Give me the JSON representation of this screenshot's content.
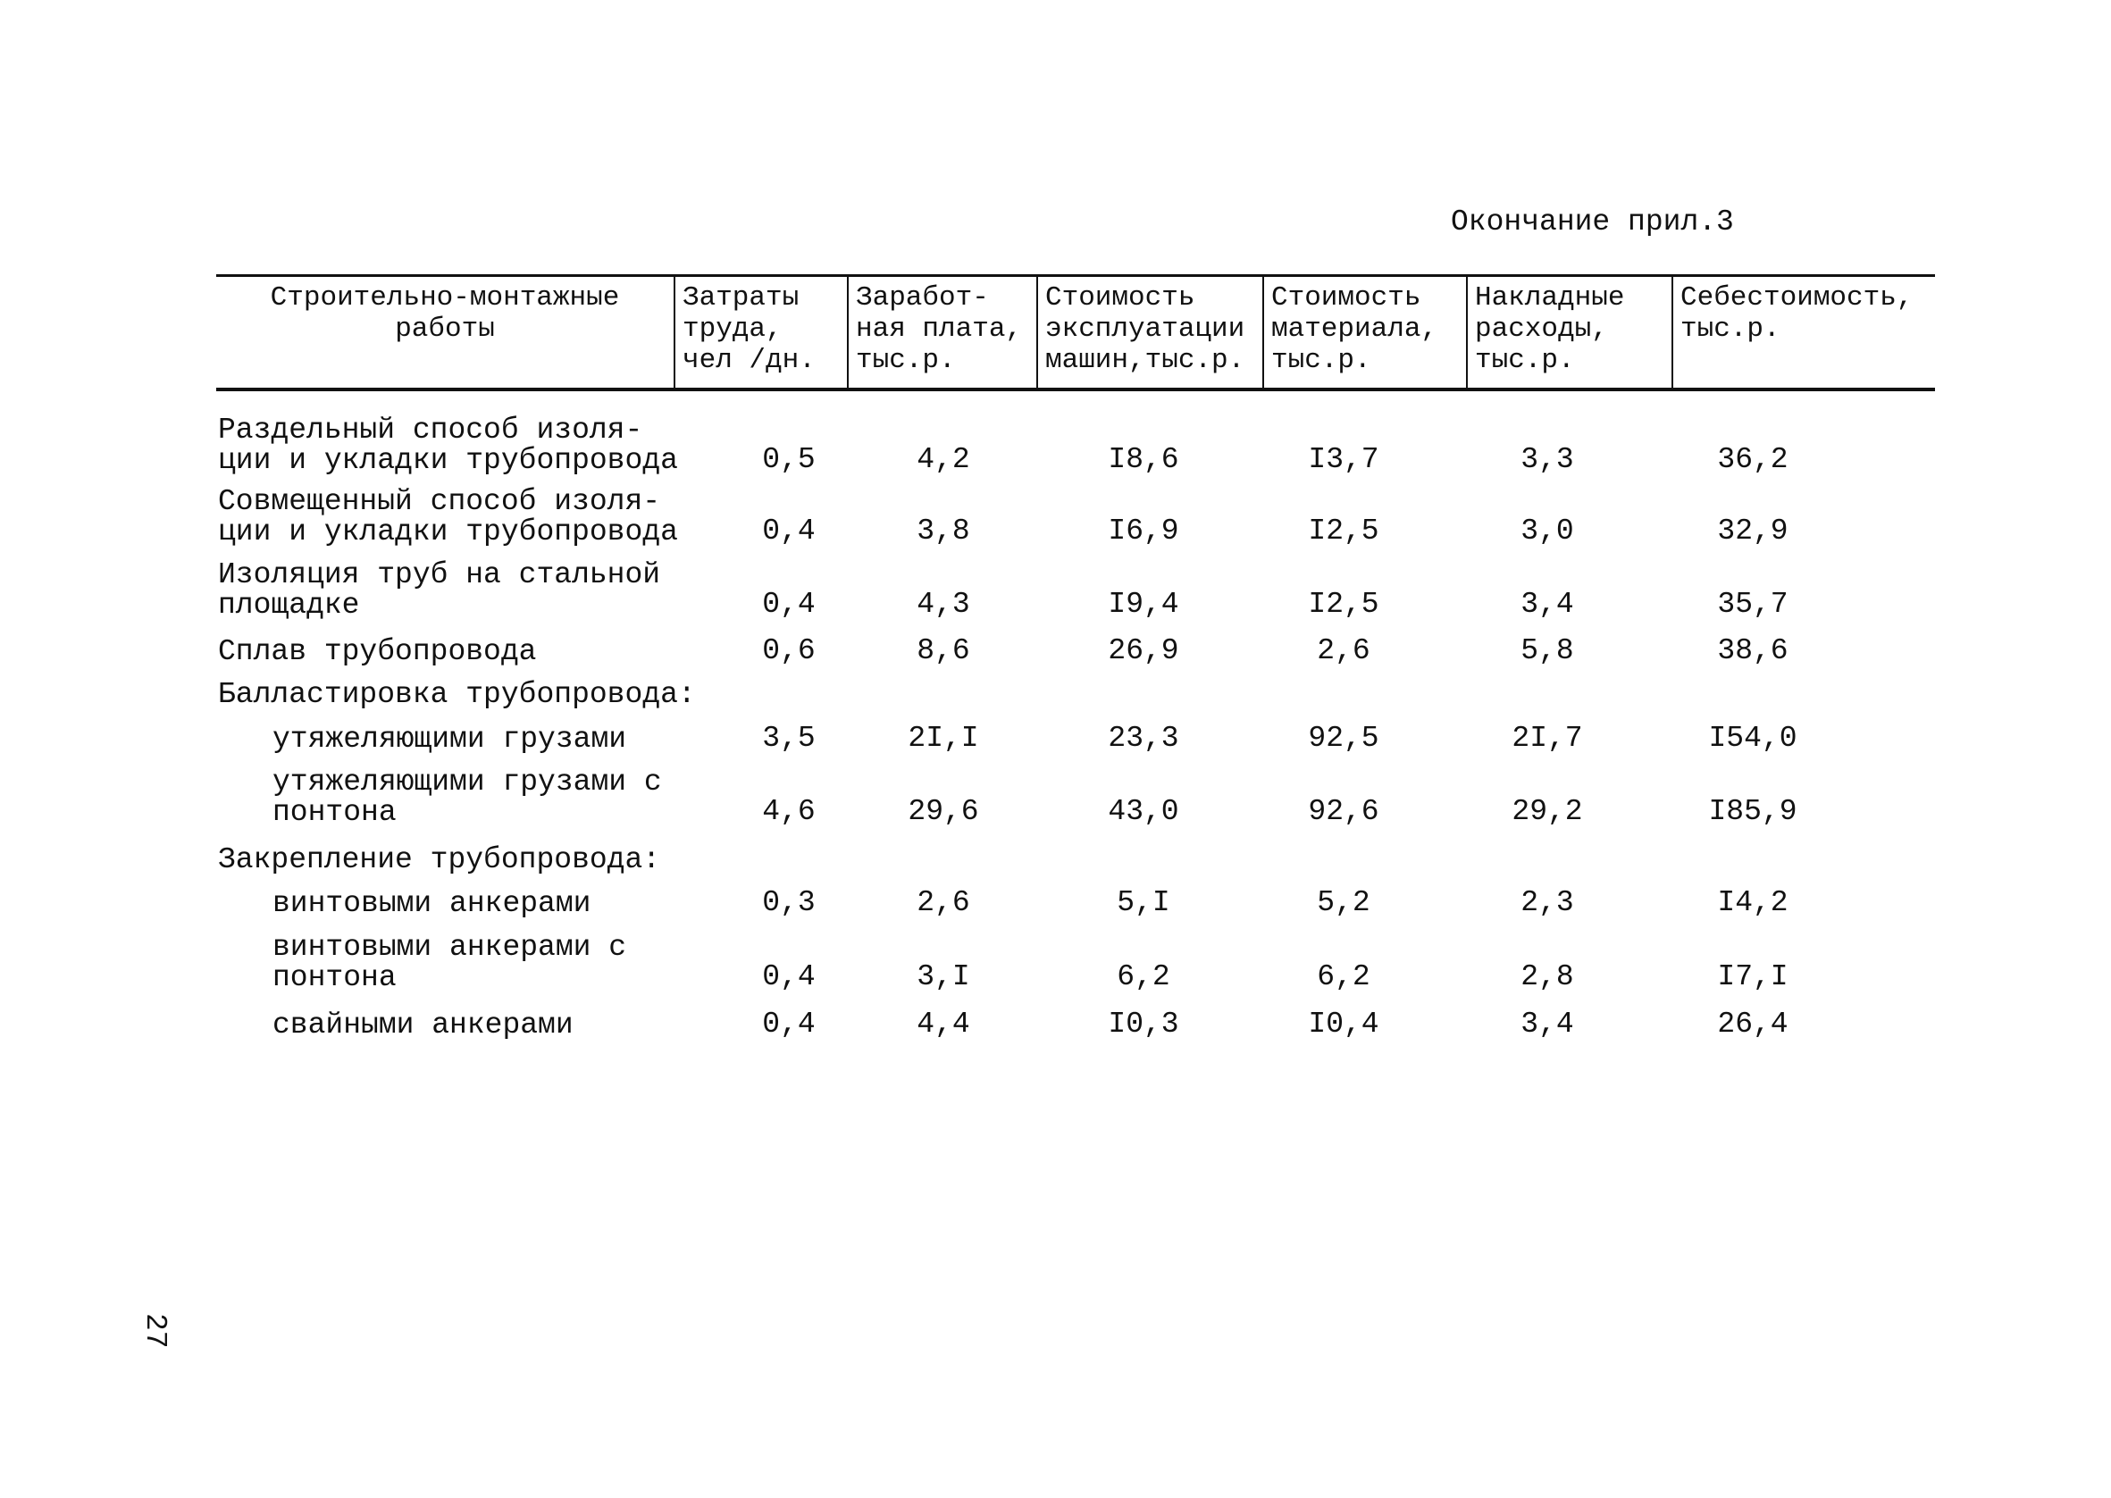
{
  "header": {
    "caption": "Окончание прил.3"
  },
  "table": {
    "columns": [
      "Строительно-монтажные\nработы",
      "Затраты\nтруда,\nчел /дн.",
      "Заработ-\nная плата,\nтыс.р.",
      "Стоимость\nэксплуатации\nмашин,тыс.р.",
      "Стоимость\nматериала,\nтыс.р.",
      "Накладные\nрасходы,\nтыс.р.",
      "Себестоимость,\nтыс.р."
    ],
    "rows": [
      {
        "label": "Раздельный способ изоля-\nции и укладки трубопровода",
        "values": [
          "0,5",
          "4,2",
          "I8,6",
          "I3,7",
          "3,3",
          "36,2"
        ]
      },
      {
        "label": "Совмещенный способ изоля-\nции и укладки трубопровода",
        "values": [
          "0,4",
          "3,8",
          "I6,9",
          "I2,5",
          "3,0",
          "32,9"
        ]
      },
      {
        "label": "Изоляция труб на стальной\nплощадке",
        "values": [
          "0,4",
          "4,3",
          "I9,4",
          "I2,5",
          "3,4",
          "35,7"
        ]
      },
      {
        "label": "Сплав трубопровода",
        "values": [
          "0,6",
          "8,6",
          "26,9",
          "2,6",
          "5,8",
          "38,6"
        ]
      },
      {
        "label": "Балластировка трубопровода:"
      },
      {
        "label": "утяжеляющими грузами",
        "values": [
          "3,5",
          "2I,I",
          "23,3",
          "92,5",
          "2I,7",
          "I54,0"
        ]
      },
      {
        "label": "утяжеляющими грузами с\nпонтона",
        "values": [
          "4,6",
          "29,6",
          "43,0",
          "92,6",
          "29,2",
          "I85,9"
        ]
      },
      {
        "label": "Закрепление трубопровода:"
      },
      {
        "label": "винтовыми анкерами",
        "values": [
          "0,3",
          "2,6",
          "5,I",
          "5,2",
          "2,3",
          "I4,2"
        ]
      },
      {
        "label": "винтовыми анкерами с\nпонтона",
        "values": [
          "0,4",
          "3,I",
          "6,2",
          "6,2",
          "2,8",
          "I7,I"
        ]
      },
      {
        "label": "свайными анкерами",
        "values": [
          "0,4",
          "4,4",
          "I0,3",
          "I0,4",
          "3,4",
          "26,4"
        ]
      }
    ]
  },
  "footer": {
    "page_number": "27"
  }
}
